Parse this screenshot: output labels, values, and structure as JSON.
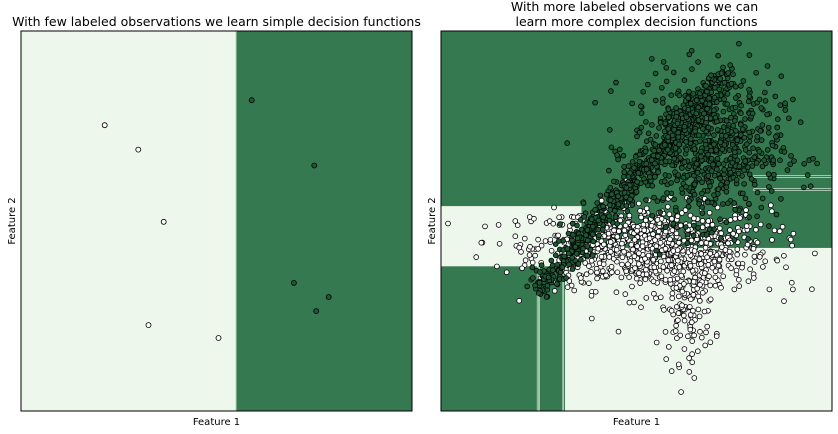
{
  "colors": {
    "class0": "#eef7ec",
    "class1": "#34794f",
    "point0": "#ffffff",
    "point1": "#1c5a36",
    "edge": "#000000",
    "spine": "#000000",
    "bg": "#ffffff"
  },
  "chart_data": [
    {
      "type": "scatter",
      "title": "With few labeled observations we learn simple decision functions",
      "xlabel": "Feature 1",
      "ylabel": "Feature 2",
      "xlim": [
        0,
        10
      ],
      "ylim": [
        0,
        10
      ],
      "grid": false,
      "regions": [
        {
          "class": 0,
          "x": [
            0,
            5.5
          ],
          "y": [
            0,
            10
          ]
        },
        {
          "class": 1,
          "x": [
            5.5,
            10
          ],
          "y": [
            0,
            10
          ]
        }
      ],
      "series": [
        {
          "class": 0,
          "points": [
            [
              2.14,
              7.52
            ],
            [
              3.0,
              6.88
            ],
            [
              3.65,
              4.98
            ],
            [
              3.26,
              2.26
            ],
            [
              5.05,
              1.92
            ]
          ]
        },
        {
          "class": 1,
          "points": [
            [
              5.9,
              8.18
            ],
            [
              7.5,
              6.46
            ],
            [
              6.98,
              3.37
            ],
            [
              7.55,
              2.63
            ],
            [
              7.87,
              3.0
            ]
          ]
        }
      ]
    },
    {
      "type": "scatter",
      "title": "With more labeled observations we can\nlearn more complex decision functions",
      "xlabel": "Feature 1",
      "ylabel": "Feature 2",
      "xlim": [
        0,
        10
      ],
      "ylim": [
        0,
        10
      ],
      "grid": false,
      "regions": [
        {
          "class": 1,
          "x": [
            0,
            10
          ],
          "y": [
            0,
            10
          ]
        },
        {
          "class": 0,
          "x": [
            0,
            3.6
          ],
          "y": [
            3.8,
            5.4
          ]
        },
        {
          "class": 0,
          "x": [
            3.1,
            10
          ],
          "y": [
            3.8,
            4.25
          ]
        },
        {
          "class": 0,
          "x": [
            3.1,
            10
          ],
          "y": [
            0,
            4.3
          ]
        },
        {
          "class": 0,
          "x": [
            2.5,
            2.5
          ],
          "y": [
            0,
            3.8
          ]
        },
        {
          "class": 0,
          "x": [
            3.1,
            3.1
          ],
          "y": [
            0,
            3.8
          ]
        },
        {
          "class": 1,
          "x": [
            2.46,
            2.49
          ],
          "y": [
            0,
            3.8
          ]
        },
        {
          "class": 1,
          "x": [
            3.14,
            3.18
          ],
          "y": [
            0,
            3.8
          ]
        },
        {
          "class": 1,
          "x": [
            8.0,
            10
          ],
          "y": [
            5.8,
            5.85
          ]
        },
        {
          "class": 1,
          "x": [
            8.0,
            10
          ],
          "y": [
            6.15,
            6.2
          ]
        }
      ],
      "series": [
        {
          "class": 0,
          "cloud": {
            "cx": 5.4,
            "cy": 4.3,
            "sx": 1.5,
            "sy": 0.55,
            "n": 900
          }
        },
        {
          "class": 0,
          "cloud": {
            "cx": 6.3,
            "cy": 2.7,
            "sx": 0.35,
            "sy": 0.7,
            "n": 120
          }
        },
        {
          "class": 0,
          "points": [
            [
              0.9,
              4.05
            ],
            [
              1.5,
              4.4
            ],
            [
              1.9,
              4.6
            ],
            [
              1.9,
              5.0
            ],
            [
              2.0,
              4.3
            ],
            [
              7.5,
              3.2
            ],
            [
              8.4,
              3.2
            ],
            [
              9.0,
              3.2
            ],
            [
              8.0,
              3.5
            ],
            [
              5.9,
              1.05
            ],
            [
              3.5,
              5.1
            ],
            [
              3.9,
              5.0
            ]
          ]
        },
        {
          "class": 1,
          "cloud": {
            "cx": 6.8,
            "cy": 6.9,
            "sx": 0.95,
            "sy": 0.95,
            "n": 700
          }
        },
        {
          "class": 1,
          "band": {
            "x0": 2.5,
            "y0": 3.2,
            "x1": 7.3,
            "y1": 8.9,
            "n": 600,
            "w": 0.35
          }
        },
        {
          "class": 1,
          "points": [
            [
              2.7,
              3.0
            ],
            [
              2.5,
              3.1
            ],
            [
              3.2,
              3.5
            ],
            [
              8.8,
              8.1
            ],
            [
              9.0,
              8.2
            ],
            [
              9.2,
              7.6
            ],
            [
              8.5,
              6.6
            ],
            [
              7.5,
              4.5
            ]
          ]
        }
      ]
    }
  ]
}
